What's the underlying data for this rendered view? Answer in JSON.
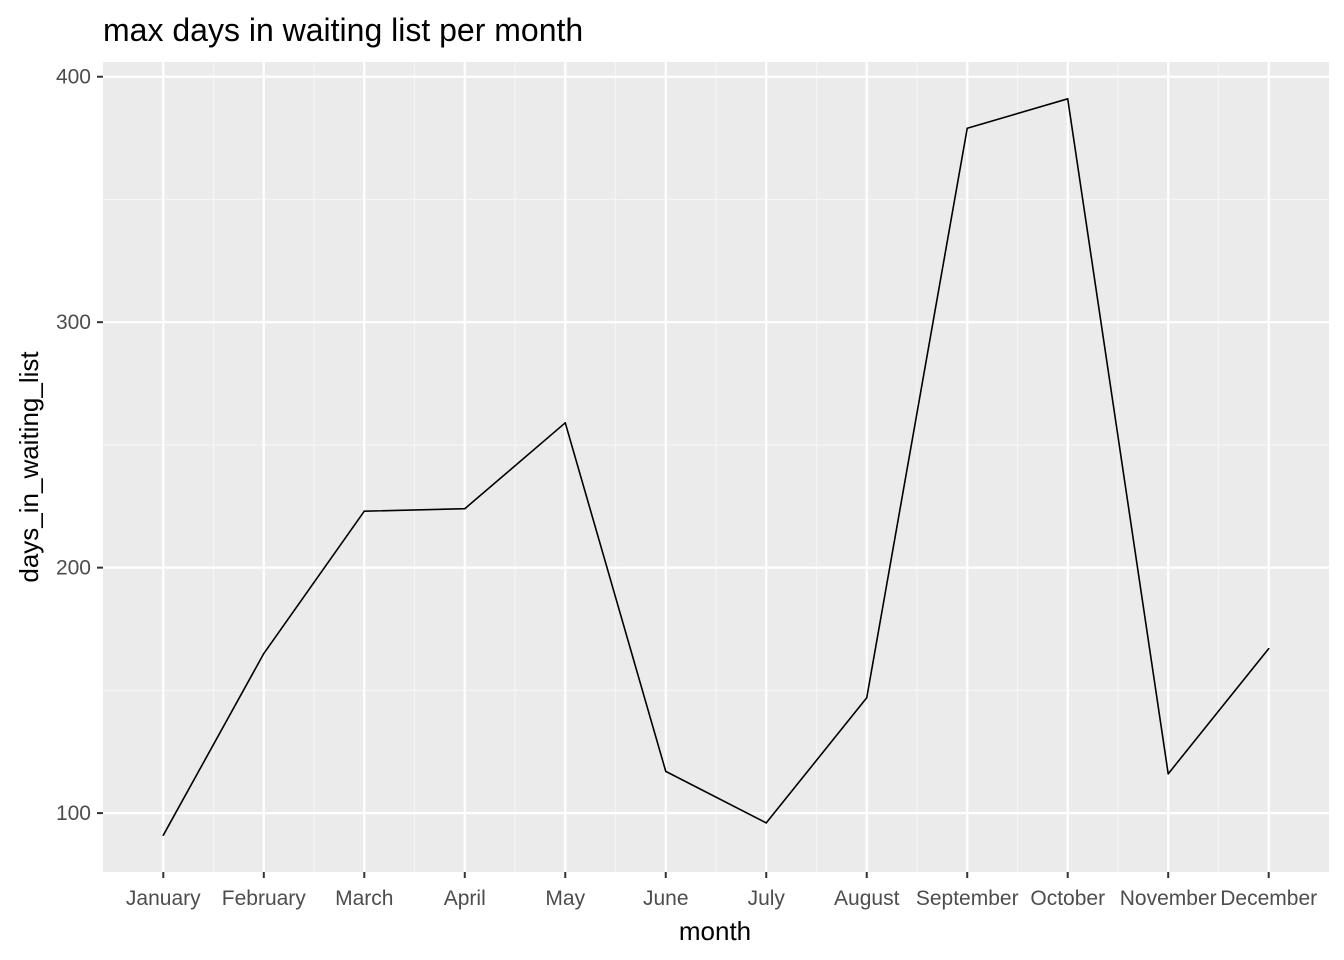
{
  "chart_data": {
    "type": "line",
    "title": "max days in waiting list per month",
    "xlabel": "month",
    "ylabel": "days_in_waiting_list",
    "categories": [
      "January",
      "February",
      "March",
      "April",
      "May",
      "June",
      "July",
      "August",
      "September",
      "October",
      "November",
      "December"
    ],
    "series": [
      {
        "values": [
          91,
          165,
          223,
          224,
          259,
          117,
          96,
          147,
          379,
          391,
          116,
          167
        ]
      }
    ],
    "ylim": [
      76,
      406
    ],
    "yticks": [
      100,
      200,
      300,
      400
    ],
    "grid": true,
    "legend": "none",
    "colors": {
      "panel": "#ebebeb",
      "grid_major": "#ffffff",
      "grid_minor": "#f5f5f5",
      "line": "#000000",
      "tick_text": "#4d4d4d",
      "tick_mark": "#333333"
    }
  }
}
